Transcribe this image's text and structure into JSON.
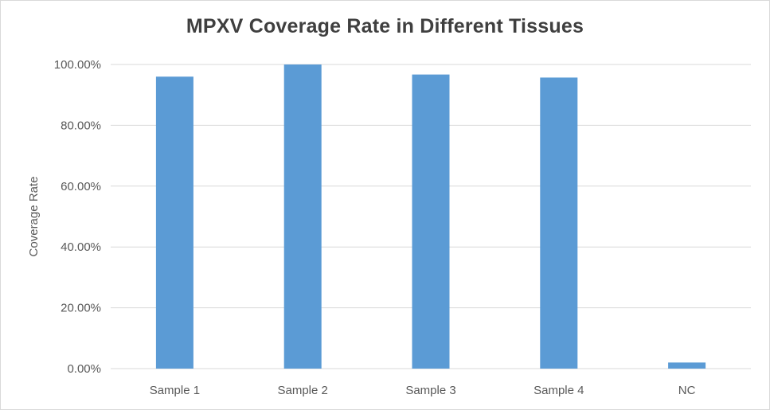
{
  "chart_data": {
    "type": "bar",
    "title": "MPXV Coverage Rate in Different Tissues",
    "xlabel": "",
    "ylabel": "Coverage Rate",
    "categories": [
      "Sample 1",
      "Sample 2",
      "Sample 3",
      "Sample 4",
      "NC"
    ],
    "values": [
      96.0,
      100.0,
      96.7,
      95.7,
      2.0
    ],
    "ylim": [
      0,
      100
    ],
    "yticks": [
      "0.00%",
      "20.00%",
      "40.00%",
      "60.00%",
      "80.00%",
      "100.00%"
    ],
    "grid": true,
    "legend": "none",
    "bar_color": "#5b9bd5",
    "grid_color": "#d9d9d9"
  }
}
